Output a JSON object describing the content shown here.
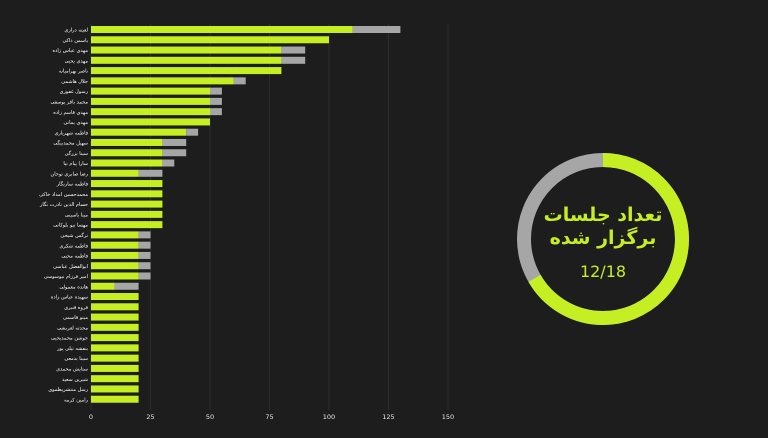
{
  "colors": {
    "background": "#1d1d1d",
    "primary": "#c6ef23",
    "secondary": "#a6a6a6",
    "grid": "#3a3a3a"
  },
  "chart_data": [
    {
      "type": "bar",
      "orientation": "horizontal",
      "stacked": true,
      "grid": true,
      "xlim": [
        0,
        150
      ],
      "xticks": [
        0,
        25,
        50,
        75,
        100,
        125,
        150
      ],
      "categories": [
        "لعیته درازی",
        "یاسمن ذاکی",
        "مهدی عباس زاده",
        "مهدی یحیی",
        "ناصر بهرامیانه",
        "جلال هاشمی",
        "رسول غفوری",
        "محمد باقر یوسفی",
        "مهدی قاسم زاده",
        "مهدی یمانی",
        "فاطمه شهریاری",
        "سهیل محمدبیگی",
        "سینا بزرگی",
        "سارا پیام نیا",
        "رضا صابری توحان",
        "فاطمه سارنگار",
        "محمدحسین امداد خاکی",
        "حسام الدین نادرت نگار",
        "مینا یاسینی",
        "مهسا نیو بلوکانی",
        "نرگس شیخی",
        "فاطمه شکری",
        "فاطمه محبی",
        "ابوالفضل عباسی",
        "امیر فرزام نیوسوسی",
        "هانده معمولی",
        "سهیده عباس زاده",
        "فروه قنبری",
        "مینو قاسمی",
        "محدثه لعربشی",
        "جوشن محمدیحیی",
        "بنفشه تیلی پور",
        "سینا بدمعی",
        "ستایش محمدی",
        "شیرین سعید",
        "رسل منتشرپطموی",
        "رامین کرمه"
      ],
      "series": [
        {
          "values": [
            110,
            100,
            80,
            80,
            80,
            60,
            50,
            50,
            50,
            50,
            40,
            30,
            30,
            30,
            20,
            30,
            30,
            30,
            30,
            30,
            20,
            20,
            20,
            20,
            20,
            10,
            20,
            20,
            20,
            20,
            20,
            20,
            20,
            20,
            20,
            20,
            20
          ]
        },
        {
          "values": [
            20,
            0,
            10,
            10,
            0,
            5,
            5,
            5,
            5,
            0,
            5,
            10,
            10,
            5,
            10,
            0,
            0,
            0,
            0,
            0,
            5,
            5,
            5,
            5,
            5,
            10,
            0,
            0,
            0,
            0,
            0,
            0,
            0,
            0,
            0,
            0,
            0
          ]
        }
      ]
    },
    {
      "type": "pie",
      "donut": true,
      "title": "تعداد جلسات برگزار شده",
      "value_label": "12/18",
      "completed": 12,
      "total": 18
    }
  ]
}
